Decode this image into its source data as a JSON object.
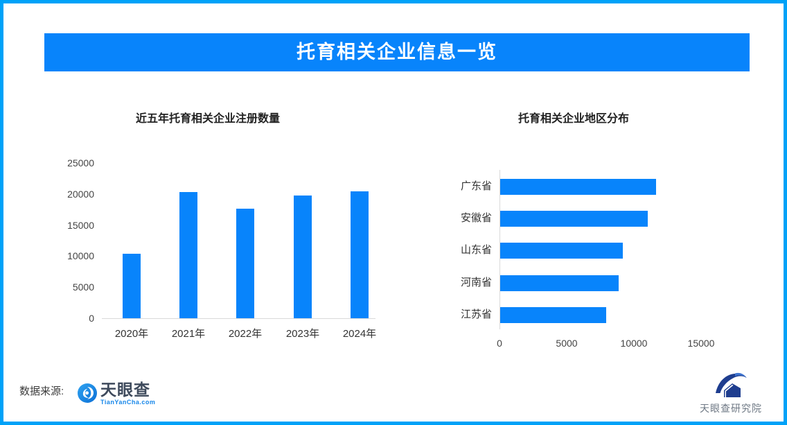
{
  "banner": {
    "title": "托育相关企业信息一览",
    "bg_color": "#0884fb",
    "text_color": "#ffffff"
  },
  "page": {
    "border_color": "#00a2f8",
    "background": "#ffffff"
  },
  "chart_data": [
    {
      "type": "bar",
      "orientation": "vertical",
      "title": "近五年托育相关企业注册数量",
      "categories": [
        "2020年",
        "2021年",
        "2022年",
        "2023年",
        "2024年"
      ],
      "values": [
        10400,
        20300,
        17600,
        19800,
        20400
      ],
      "yticks": [
        0,
        5000,
        10000,
        15000,
        20000,
        25000
      ],
      "ylim": [
        0,
        25000
      ],
      "bar_color": "#0884fb",
      "grid": false,
      "legend": null
    },
    {
      "type": "bar",
      "orientation": "horizontal",
      "title": "托育相关企业地区分布",
      "categories": [
        "广东省",
        "安徽省",
        "山东省",
        "河南省",
        "江苏省"
      ],
      "values": [
        11600,
        11000,
        9100,
        8800,
        7900
      ],
      "xticks": [
        0,
        5000,
        10000,
        15000
      ],
      "xlim": [
        0,
        15000
      ],
      "bar_color": "#0884fb",
      "grid": false,
      "legend": null
    }
  ],
  "footer": {
    "source_label": "数据来源:",
    "tianyancha": {
      "name": "天眼查",
      "domain": "TianYanCha.com",
      "icon": "tianyancha-eye-icon"
    },
    "research": {
      "name": "天眼查研究院",
      "icon": "research-institute-icon"
    }
  }
}
